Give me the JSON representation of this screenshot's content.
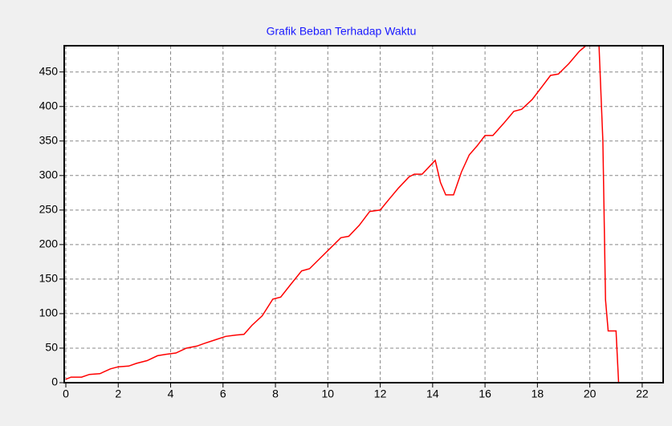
{
  "chart_data": {
    "type": "line",
    "title": "Grafik Beban Terhadap Waktu",
    "x": [
      0,
      0.2,
      0.6,
      0.9,
      1.3,
      1.7,
      2,
      2.4,
      2.7,
      3.1,
      3.5,
      3.8,
      4.2,
      4.6,
      5,
      5.3,
      5.7,
      6.1,
      6.5,
      6.8,
      7.1,
      7.5,
      7.9,
      8.2,
      8.6,
      9,
      9.3,
      9.7,
      10.1,
      10.5,
      10.8,
      11.2,
      11.6,
      12,
      12.3,
      12.7,
      13.1,
      13.3,
      13.6,
      14,
      14.1,
      14.3,
      14.5,
      14.8,
      15.1,
      15.4,
      15.7,
      16,
      16.3,
      16.7,
      17.1,
      17.4,
      17.8,
      18.2,
      18.5,
      18.8,
      19.2,
      19.6,
      19.85,
      20.1,
      20.35,
      20.5,
      20.6,
      20.7,
      21,
      21.1
    ],
    "series": [
      {
        "color": "#ff0000",
        "values": [
          5,
          8,
          8,
          12,
          13,
          20,
          23,
          24,
          28,
          32,
          39,
          41,
          43,
          50,
          53,
          57,
          62,
          67,
          69,
          70,
          83,
          97,
          121,
          124,
          143,
          162,
          165,
          180,
          195,
          210,
          212,
          228,
          248,
          250,
          264,
          282,
          298,
          302,
          302,
          318,
          322,
          290,
          272,
          272,
          305,
          330,
          343,
          358,
          358,
          375,
          393,
          396,
          410,
          430,
          445,
          447,
          462,
          480,
          488,
          null,
          488,
          350,
          120,
          75,
          75,
          0
        ]
      }
    ],
    "xlim": [
      0,
      22.8
    ],
    "xticks": [
      0,
      2,
      4,
      6,
      8,
      10,
      12,
      14,
      16,
      18,
      20,
      22
    ],
    "ylim": [
      0,
      488
    ],
    "yticks": [
      0,
      50,
      100,
      150,
      200,
      250,
      300,
      350,
      400,
      450
    ],
    "grid": true
  }
}
